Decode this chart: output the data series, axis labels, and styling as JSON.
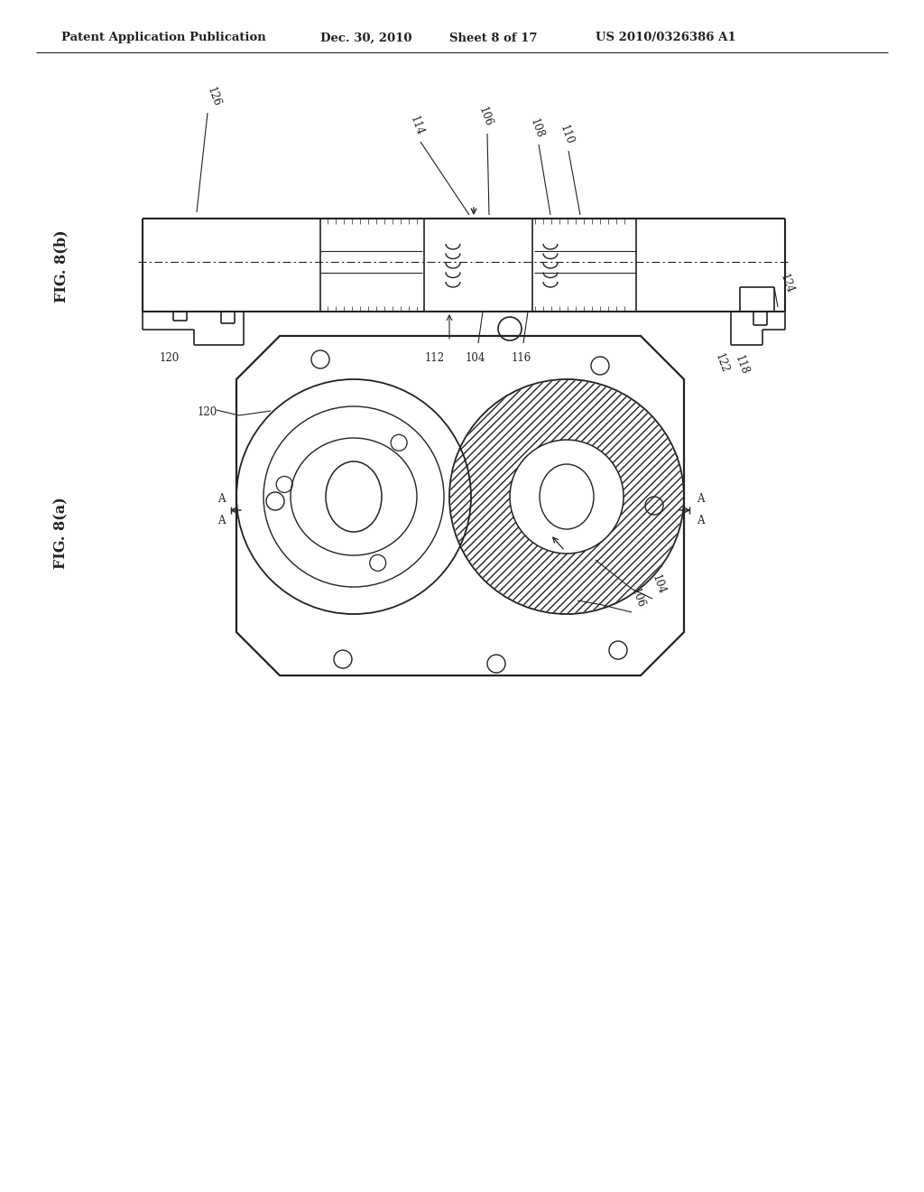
{
  "bg_color": "#ffffff",
  "line_color": "#222222",
  "header_text1": "Patent Application Publication",
  "header_text2": "Dec. 30, 2010",
  "header_text3": "Sheet 8 of 17",
  "header_text4": "US 2010/0326386 A1",
  "fig_b_label": "FIG. 8(b)",
  "fig_a_label": "FIG. 8(a)"
}
